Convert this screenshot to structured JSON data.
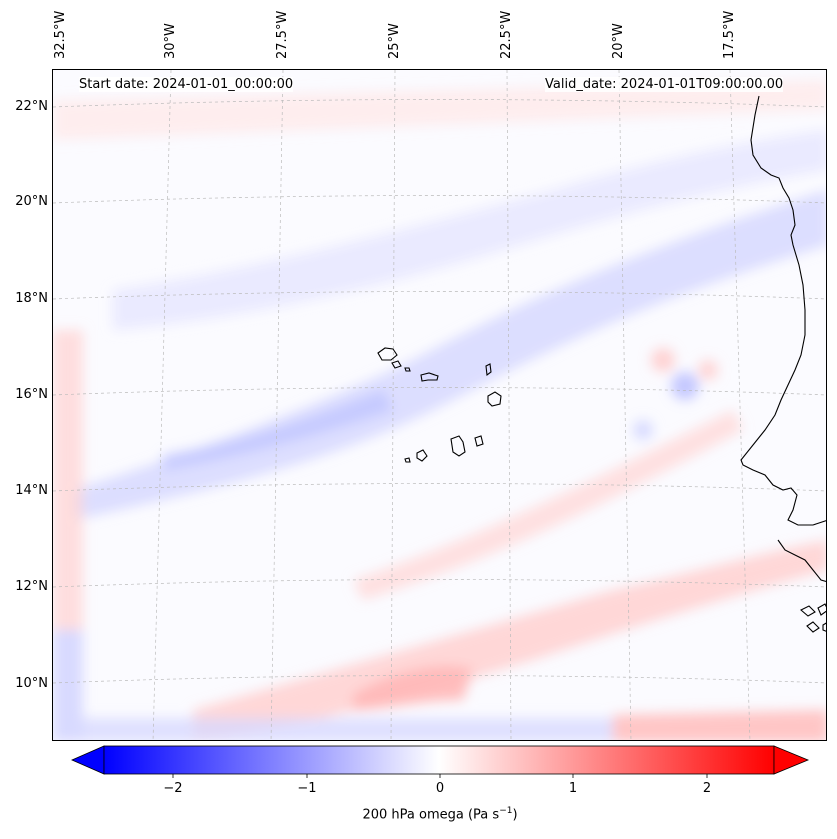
{
  "map": {
    "start_date": "Start date: 2024-01-01_00:00:00",
    "valid_date": "Valid_date: 2024-01-01T09:00:00.00",
    "lon_labels": [
      "32.5°W",
      "30°W",
      "27.5°W",
      "25°W",
      "22.5°W",
      "20°W",
      "17.5°W"
    ],
    "lat_labels": [
      "22°N",
      "20°N",
      "18°N",
      "16°N",
      "14°N",
      "12°N",
      "10°N"
    ],
    "variable": "200 hPa omega",
    "units": "Pa s",
    "units_exponent": "−1",
    "colormap": "bwr",
    "colors": {
      "negative": "#0000ff",
      "zero": "#ffffff",
      "positive": "#ff0000",
      "ocean_bg": "#fbfbff",
      "coast": "#000000"
    }
  },
  "colorbar": {
    "ticks": [
      "−2",
      "−1",
      "0",
      "1",
      "2"
    ],
    "tick_values": [
      -2,
      -1,
      0,
      1,
      2
    ],
    "range": [
      -2.6,
      2.6
    ]
  }
}
